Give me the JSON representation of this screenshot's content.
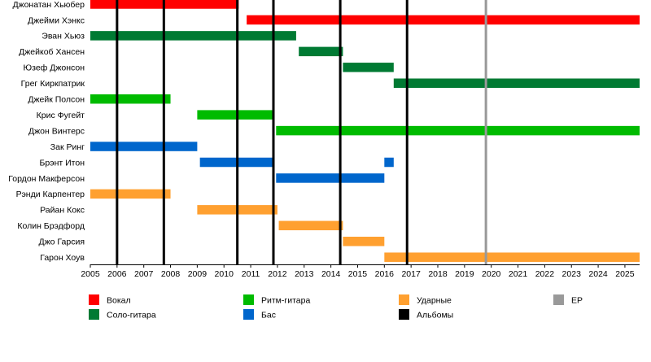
{
  "chart_data": {
    "type": "timeline",
    "x_range": [
      2005,
      2025.55
    ],
    "x_ticks": [
      "2005",
      "2006",
      "2007",
      "2008",
      "2009",
      "2010",
      "2011",
      "2012",
      "2013",
      "2014",
      "2015",
      "2016",
      "2017",
      "2018",
      "2019",
      "2020",
      "2021",
      "2022",
      "2023",
      "2024",
      "2025"
    ],
    "colors": {
      "vocal": "#ff0000",
      "lead_guitar": "#007a33",
      "rhythm_guitar": "#00bb00",
      "bass": "#0066cc",
      "drums": "#ffa030",
      "albums": "#000000",
      "ep": "#999999"
    },
    "members": [
      {
        "name": "Джонатан Хьюбер",
        "role": "vocal",
        "periods": [
          [
            2005.0,
            2010.55
          ]
        ]
      },
      {
        "name": "Джейми Хэнкс",
        "role": "vocal",
        "periods": [
          [
            2010.85,
            2025.55
          ]
        ]
      },
      {
        "name": "Эван Хьюз",
        "role": "lead_guitar",
        "periods": [
          [
            2005.0,
            2012.7
          ]
        ]
      },
      {
        "name": "Джейкоб Хансен",
        "role": "lead_guitar",
        "periods": [
          [
            2012.8,
            2014.45
          ]
        ]
      },
      {
        "name": "Юзеф Джонсон",
        "role": "lead_guitar",
        "periods": [
          [
            2014.45,
            2016.35
          ]
        ]
      },
      {
        "name": "Грег Киркпатрик",
        "role": "lead_guitar",
        "periods": [
          [
            2016.35,
            2025.55
          ]
        ]
      },
      {
        "name": "Джейк Полсон",
        "role": "rhythm_guitar",
        "periods": [
          [
            2005.0,
            2008.0
          ]
        ]
      },
      {
        "name": "Крис Фугейт",
        "role": "rhythm_guitar",
        "periods": [
          [
            2009.0,
            2011.85
          ]
        ]
      },
      {
        "name": "Джон Винтерс",
        "role": "rhythm_guitar",
        "periods": [
          [
            2011.95,
            2025.55
          ]
        ]
      },
      {
        "name": "Зак Ринг",
        "role": "bass",
        "periods": [
          [
            2005.0,
            2009.0
          ]
        ]
      },
      {
        "name": "Брэнт Итон",
        "role": "bass",
        "periods": [
          [
            2009.1,
            2011.85
          ],
          [
            2016.0,
            2016.35
          ]
        ]
      },
      {
        "name": "Гордон Макферсон",
        "role": "bass",
        "periods": [
          [
            2011.95,
            2016.0
          ]
        ]
      },
      {
        "name": "Рэнди Карпентер",
        "role": "drums",
        "periods": [
          [
            2005.0,
            2008.0
          ]
        ]
      },
      {
        "name": "Райан Кокс",
        "role": "drums",
        "periods": [
          [
            2009.0,
            2012.0
          ]
        ]
      },
      {
        "name": "Колин Брэдфорд",
        "role": "drums",
        "periods": [
          [
            2012.05,
            2014.45
          ]
        ]
      },
      {
        "name": "Джо Гарсия",
        "role": "drums",
        "periods": [
          [
            2014.45,
            2016.0
          ]
        ]
      },
      {
        "name": "Гарон Хоув",
        "role": "drums",
        "periods": [
          [
            2016.0,
            2025.55
          ]
        ]
      }
    ],
    "albums": [
      2006.0,
      2007.75,
      2010.5,
      2011.85,
      2014.35,
      2016.85
    ],
    "eps": [
      2019.8
    ],
    "legend": [
      {
        "key": "vocal",
        "label": "Вокал"
      },
      {
        "key": "lead_guitar",
        "label": "Соло-гитара"
      },
      {
        "key": "rhythm_guitar",
        "label": "Ритм-гитара"
      },
      {
        "key": "bass",
        "label": "Бас"
      },
      {
        "key": "drums",
        "label": "Ударные"
      },
      {
        "key": "albums",
        "label": "Альбомы"
      },
      {
        "key": "ep",
        "label": "EP"
      }
    ]
  }
}
